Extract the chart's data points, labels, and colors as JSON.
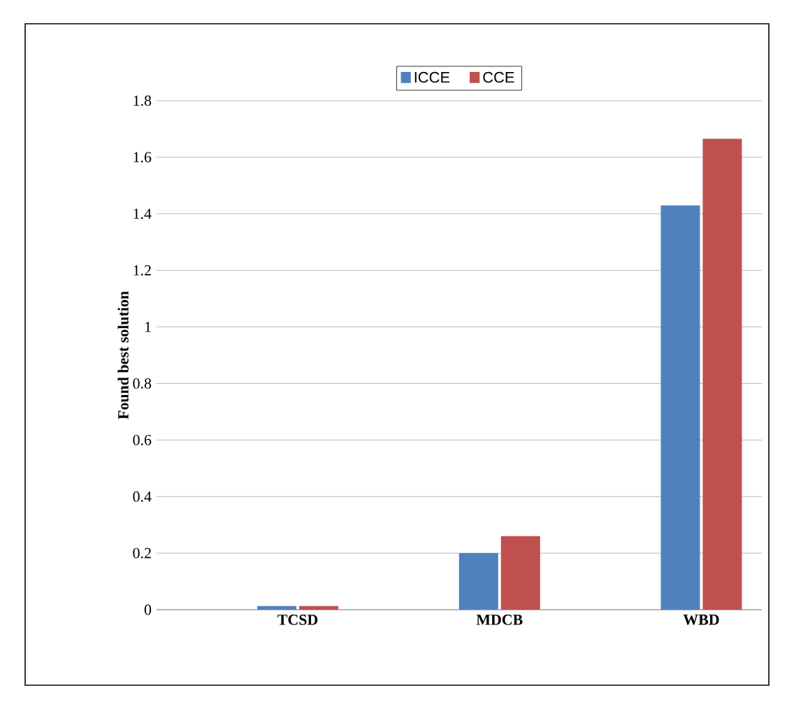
{
  "chart_data": {
    "type": "bar",
    "ylabel": "Found best solution",
    "categories": [
      "TCSD",
      "MDCB",
      "WBD"
    ],
    "series": [
      {
        "name": "ICCE",
        "color": "#4f81bd",
        "values": [
          0.013,
          0.2,
          1.43
        ]
      },
      {
        "name": "CCE",
        "color": "#c0504d",
        "values": [
          0.013,
          0.26,
          1.665
        ]
      }
    ],
    "ylim": [
      0,
      1.8
    ],
    "yticks": [
      0,
      0.2,
      0.4,
      0.6,
      0.8,
      1,
      1.2,
      1.4,
      1.6,
      1.8
    ],
    "grid": "y",
    "legend": "top"
  }
}
